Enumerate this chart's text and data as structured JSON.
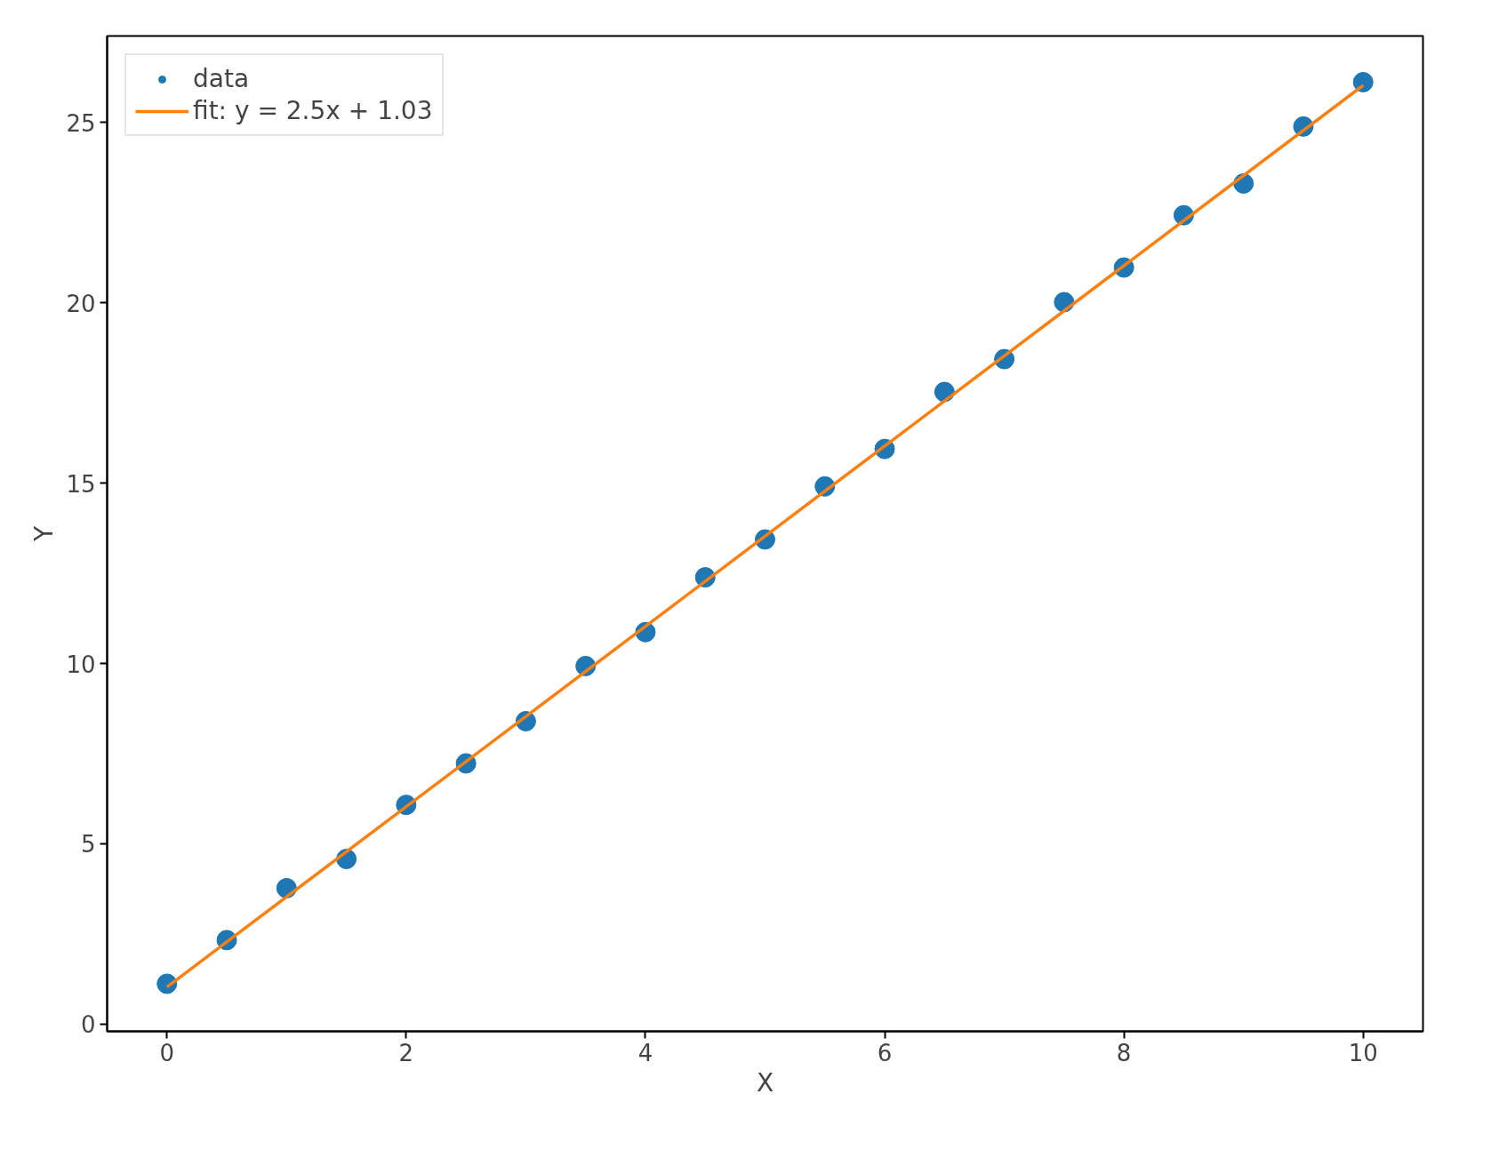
{
  "chart_data": {
    "type": "scatter",
    "xlabel": "X",
    "ylabel": "Y",
    "xlim": [
      -0.5,
      10.5
    ],
    "ylim": [
      -0.2,
      27.4
    ],
    "xticks": [
      0,
      2,
      4,
      6,
      8,
      10
    ],
    "yticks": [
      0,
      5,
      10,
      15,
      20,
      25
    ],
    "grid": false,
    "legend": "top left",
    "series": [
      {
        "name": "data",
        "marker": "circle",
        "color": "#1f77b4",
        "x": [
          0,
          0.5,
          1,
          1.5,
          2,
          2.5,
          3,
          3.5,
          4,
          4.5,
          5,
          5.5,
          6,
          6.5,
          7,
          7.5,
          8,
          8.5,
          9,
          9.5,
          10
        ],
        "values": [
          1.12,
          2.33,
          3.77,
          4.58,
          6.08,
          7.23,
          8.4,
          9.93,
          10.87,
          12.39,
          13.44,
          14.91,
          15.95,
          17.53,
          18.44,
          20.02,
          20.98,
          22.43,
          23.31,
          24.89,
          26.12
        ]
      },
      {
        "name": "fit: y = 2.5x + 1.03",
        "type": "line",
        "line_style": "solid",
        "color": "#ff7f0e",
        "x": [
          0,
          10
        ],
        "values": [
          1.03,
          26.03
        ]
      }
    ]
  }
}
